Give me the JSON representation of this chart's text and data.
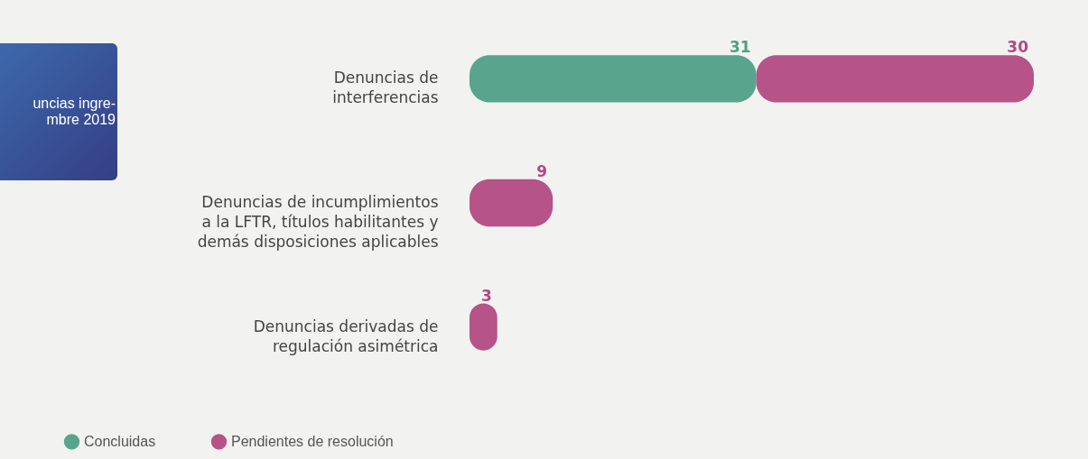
{
  "chart_data": {
    "type": "bar",
    "orientation": "horizontal",
    "stacked": true,
    "data_labels": true,
    "categories": [
      "Denuncias de\ninterferencias",
      "Denuncias de incumplimientos\na la LFTR, títulos habilitantes y\ndemás disposiciones aplicables",
      "Denuncias derivadas de\nregulación asimétrica"
    ],
    "series": [
      {
        "name": "Concluidas",
        "color": "#4f9f86",
        "values": [
          31,
          null,
          null
        ]
      },
      {
        "name": "Pendientes de resolución",
        "color": "#b24a82",
        "values": [
          30,
          9,
          3
        ]
      }
    ],
    "legend": "bottom left",
    "annotations": [
      "uncias ingre-\nmbre 2019"
    ]
  }
}
